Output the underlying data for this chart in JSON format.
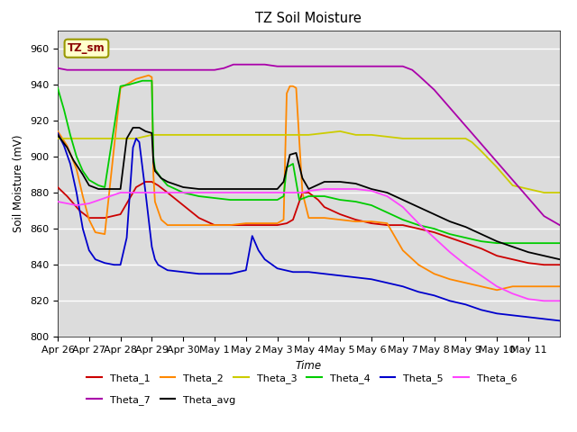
{
  "title": "TZ Soil Moisture",
  "xlabel": "Time",
  "ylabel": "Soil Moisture (mV)",
  "ylim": [
    800,
    970
  ],
  "yticks": [
    800,
    820,
    840,
    860,
    880,
    900,
    920,
    940,
    960
  ],
  "bg_color": "#dcdcdc",
  "legend_label": "TZ_sm",
  "series_order": [
    "Theta_1",
    "Theta_2",
    "Theta_3",
    "Theta_4",
    "Theta_5",
    "Theta_6",
    "Theta_7",
    "Theta_avg"
  ],
  "series": {
    "Theta_1": {
      "color": "#cc0000",
      "points": [
        [
          0,
          883
        ],
        [
          0.3,
          878
        ],
        [
          0.7,
          870
        ],
        [
          1.0,
          866
        ],
        [
          1.5,
          866
        ],
        [
          2.0,
          868
        ],
        [
          2.5,
          883
        ],
        [
          2.8,
          886
        ],
        [
          3.0,
          886
        ],
        [
          3.2,
          884
        ],
        [
          3.5,
          880
        ],
        [
          4.0,
          873
        ],
        [
          4.5,
          866
        ],
        [
          5.0,
          862
        ],
        [
          5.5,
          862
        ],
        [
          6.0,
          862
        ],
        [
          6.5,
          862
        ],
        [
          7.0,
          862
        ],
        [
          7.3,
          863
        ],
        [
          7.5,
          865
        ],
        [
          7.8,
          880
        ],
        [
          8.0,
          880
        ],
        [
          8.3,
          876
        ],
        [
          8.5,
          872
        ],
        [
          9.0,
          868
        ],
        [
          9.5,
          865
        ],
        [
          10.0,
          863
        ],
        [
          10.5,
          862
        ],
        [
          11.0,
          862
        ],
        [
          11.5,
          860
        ],
        [
          12.0,
          858
        ],
        [
          12.5,
          855
        ],
        [
          13.0,
          852
        ],
        [
          13.5,
          849
        ],
        [
          14.0,
          845
        ],
        [
          14.5,
          843
        ],
        [
          15.0,
          841
        ],
        [
          15.5,
          840
        ],
        [
          16.0,
          840
        ]
      ]
    },
    "Theta_2": {
      "color": "#ff8800",
      "points": [
        [
          0,
          914
        ],
        [
          0.3,
          906
        ],
        [
          0.6,
          893
        ],
        [
          0.8,
          878
        ],
        [
          1.0,
          865
        ],
        [
          1.2,
          858
        ],
        [
          1.5,
          857
        ],
        [
          2.0,
          938
        ],
        [
          2.3,
          941
        ],
        [
          2.5,
          943
        ],
        [
          2.7,
          944
        ],
        [
          2.9,
          945
        ],
        [
          3.0,
          944
        ],
        [
          3.05,
          890
        ],
        [
          3.1,
          875
        ],
        [
          3.3,
          865
        ],
        [
          3.5,
          862
        ],
        [
          4.0,
          862
        ],
        [
          4.5,
          862
        ],
        [
          5.0,
          862
        ],
        [
          5.5,
          862
        ],
        [
          6.0,
          863
        ],
        [
          6.5,
          863
        ],
        [
          7.0,
          863
        ],
        [
          7.2,
          865
        ],
        [
          7.3,
          935
        ],
        [
          7.4,
          939
        ],
        [
          7.5,
          939
        ],
        [
          7.6,
          938
        ],
        [
          7.8,
          880
        ],
        [
          8.0,
          866
        ],
        [
          8.2,
          866
        ],
        [
          8.5,
          866
        ],
        [
          9.0,
          865
        ],
        [
          9.5,
          864
        ],
        [
          10.0,
          864
        ],
        [
          10.5,
          863
        ],
        [
          11.0,
          848
        ],
        [
          11.5,
          840
        ],
        [
          12.0,
          835
        ],
        [
          12.5,
          832
        ],
        [
          13.0,
          830
        ],
        [
          13.5,
          828
        ],
        [
          14.0,
          826
        ],
        [
          14.5,
          828
        ],
        [
          15.0,
          828
        ],
        [
          15.5,
          828
        ],
        [
          16.0,
          828
        ]
      ]
    },
    "Theta_3": {
      "color": "#cccc00",
      "points": [
        [
          0,
          910
        ],
        [
          0.5,
          910
        ],
        [
          1.0,
          910
        ],
        [
          1.5,
          910
        ],
        [
          2.0,
          910
        ],
        [
          2.5,
          910
        ],
        [
          3.0,
          912
        ],
        [
          3.5,
          912
        ],
        [
          4.0,
          912
        ],
        [
          4.5,
          912
        ],
        [
          5.0,
          912
        ],
        [
          5.5,
          912
        ],
        [
          6.0,
          912
        ],
        [
          6.5,
          912
        ],
        [
          7.0,
          912
        ],
        [
          7.5,
          912
        ],
        [
          8.0,
          912
        ],
        [
          8.5,
          913
        ],
        [
          9.0,
          914
        ],
        [
          9.5,
          912
        ],
        [
          10.0,
          912
        ],
        [
          10.5,
          911
        ],
        [
          11.0,
          910
        ],
        [
          11.5,
          910
        ],
        [
          12.0,
          910
        ],
        [
          12.5,
          910
        ],
        [
          13.0,
          910
        ],
        [
          13.2,
          908
        ],
        [
          13.5,
          903
        ],
        [
          14.0,
          894
        ],
        [
          14.3,
          888
        ],
        [
          14.5,
          884
        ],
        [
          15.0,
          882
        ],
        [
          15.5,
          880
        ],
        [
          16.0,
          880
        ]
      ]
    },
    "Theta_4": {
      "color": "#00cc00",
      "points": [
        [
          0,
          938
        ],
        [
          0.2,
          926
        ],
        [
          0.4,
          912
        ],
        [
          0.6,
          900
        ],
        [
          0.8,
          892
        ],
        [
          1.0,
          887
        ],
        [
          1.3,
          884
        ],
        [
          1.5,
          883
        ],
        [
          2.0,
          939
        ],
        [
          2.3,
          940
        ],
        [
          2.5,
          941
        ],
        [
          2.7,
          942
        ],
        [
          2.9,
          942
        ],
        [
          3.0,
          942
        ],
        [
          3.05,
          900
        ],
        [
          3.1,
          893
        ],
        [
          3.3,
          888
        ],
        [
          3.5,
          884
        ],
        [
          4.0,
          880
        ],
        [
          4.5,
          878
        ],
        [
          5.0,
          877
        ],
        [
          5.5,
          876
        ],
        [
          6.0,
          876
        ],
        [
          6.5,
          876
        ],
        [
          7.0,
          876
        ],
        [
          7.2,
          878
        ],
        [
          7.3,
          894
        ],
        [
          7.5,
          896
        ],
        [
          7.7,
          876
        ],
        [
          8.0,
          878
        ],
        [
          8.5,
          878
        ],
        [
          9.0,
          876
        ],
        [
          9.5,
          875
        ],
        [
          10.0,
          873
        ],
        [
          10.5,
          869
        ],
        [
          11.0,
          865
        ],
        [
          11.5,
          862
        ],
        [
          12.0,
          860
        ],
        [
          12.5,
          857
        ],
        [
          13.0,
          855
        ],
        [
          13.5,
          853
        ],
        [
          14.0,
          852
        ],
        [
          14.5,
          852
        ],
        [
          15.0,
          852
        ],
        [
          15.5,
          852
        ],
        [
          16.0,
          852
        ]
      ]
    },
    "Theta_5": {
      "color": "#0000cc",
      "points": [
        [
          0,
          913
        ],
        [
          0.2,
          906
        ],
        [
          0.4,
          896
        ],
        [
          0.6,
          880
        ],
        [
          0.8,
          860
        ],
        [
          1.0,
          848
        ],
        [
          1.2,
          843
        ],
        [
          1.5,
          841
        ],
        [
          1.8,
          840
        ],
        [
          2.0,
          840
        ],
        [
          2.2,
          855
        ],
        [
          2.4,
          905
        ],
        [
          2.5,
          910
        ],
        [
          2.6,
          908
        ],
        [
          2.8,
          880
        ],
        [
          3.0,
          850
        ],
        [
          3.1,
          843
        ],
        [
          3.2,
          840
        ],
        [
          3.5,
          837
        ],
        [
          4.0,
          836
        ],
        [
          4.5,
          835
        ],
        [
          5.0,
          835
        ],
        [
          5.5,
          835
        ],
        [
          6.0,
          837
        ],
        [
          6.2,
          856
        ],
        [
          6.4,
          848
        ],
        [
          6.6,
          843
        ],
        [
          7.0,
          838
        ],
        [
          7.5,
          836
        ],
        [
          8.0,
          836
        ],
        [
          8.5,
          835
        ],
        [
          9.0,
          834
        ],
        [
          9.5,
          833
        ],
        [
          10.0,
          832
        ],
        [
          10.5,
          830
        ],
        [
          11.0,
          828
        ],
        [
          11.5,
          825
        ],
        [
          12.0,
          823
        ],
        [
          12.5,
          820
        ],
        [
          13.0,
          818
        ],
        [
          13.5,
          815
        ],
        [
          14.0,
          813
        ],
        [
          14.5,
          812
        ],
        [
          15.0,
          811
        ],
        [
          15.5,
          810
        ],
        [
          16.0,
          809
        ]
      ]
    },
    "Theta_6": {
      "color": "#ff44ff",
      "points": [
        [
          0,
          875
        ],
        [
          0.3,
          874
        ],
        [
          0.6,
          873
        ],
        [
          1.0,
          874
        ],
        [
          1.5,
          877
        ],
        [
          2.0,
          880
        ],
        [
          2.5,
          880
        ],
        [
          3.0,
          880
        ],
        [
          3.5,
          880
        ],
        [
          4.0,
          880
        ],
        [
          4.5,
          880
        ],
        [
          5.0,
          880
        ],
        [
          5.5,
          880
        ],
        [
          6.0,
          880
        ],
        [
          6.5,
          880
        ],
        [
          7.0,
          880
        ],
        [
          7.5,
          880
        ],
        [
          7.8,
          880
        ],
        [
          8.0,
          881
        ],
        [
          8.5,
          882
        ],
        [
          9.0,
          882
        ],
        [
          9.5,
          882
        ],
        [
          10.0,
          881
        ],
        [
          10.5,
          878
        ],
        [
          11.0,
          872
        ],
        [
          11.5,
          863
        ],
        [
          12.0,
          855
        ],
        [
          12.5,
          847
        ],
        [
          13.0,
          840
        ],
        [
          13.5,
          834
        ],
        [
          14.0,
          828
        ],
        [
          14.5,
          824
        ],
        [
          15.0,
          821
        ],
        [
          15.5,
          820
        ],
        [
          16.0,
          820
        ]
      ]
    },
    "Theta_7": {
      "color": "#aa00aa",
      "points": [
        [
          0,
          949
        ],
        [
          0.3,
          948
        ],
        [
          0.7,
          948
        ],
        [
          1.0,
          948
        ],
        [
          1.5,
          948
        ],
        [
          2.0,
          948
        ],
        [
          2.5,
          948
        ],
        [
          3.0,
          948
        ],
        [
          3.5,
          948
        ],
        [
          4.0,
          948
        ],
        [
          4.5,
          948
        ],
        [
          5.0,
          948
        ],
        [
          5.3,
          949
        ],
        [
          5.6,
          951
        ],
        [
          5.8,
          951
        ],
        [
          6.0,
          951
        ],
        [
          6.3,
          951
        ],
        [
          6.6,
          951
        ],
        [
          7.0,
          950
        ],
        [
          7.5,
          950
        ],
        [
          8.0,
          950
        ],
        [
          8.5,
          950
        ],
        [
          9.0,
          950
        ],
        [
          9.5,
          950
        ],
        [
          10.0,
          950
        ],
        [
          10.5,
          950
        ],
        [
          11.0,
          950
        ],
        [
          11.3,
          948
        ],
        [
          11.5,
          945
        ],
        [
          12.0,
          937
        ],
        [
          12.5,
          927
        ],
        [
          13.0,
          917
        ],
        [
          13.5,
          907
        ],
        [
          14.0,
          897
        ],
        [
          14.5,
          887
        ],
        [
          15.0,
          877
        ],
        [
          15.5,
          867
        ],
        [
          16.0,
          862
        ]
      ]
    },
    "Theta_avg": {
      "color": "#000000",
      "points": [
        [
          0,
          912
        ],
        [
          0.3,
          905
        ],
        [
          0.5,
          898
        ],
        [
          0.8,
          890
        ],
        [
          1.0,
          884
        ],
        [
          1.3,
          882
        ],
        [
          1.5,
          882
        ],
        [
          2.0,
          882
        ],
        [
          2.2,
          910
        ],
        [
          2.4,
          916
        ],
        [
          2.6,
          916
        ],
        [
          2.8,
          914
        ],
        [
          3.0,
          913
        ],
        [
          3.05,
          897
        ],
        [
          3.1,
          892
        ],
        [
          3.3,
          888
        ],
        [
          3.5,
          886
        ],
        [
          4.0,
          883
        ],
        [
          4.5,
          882
        ],
        [
          5.0,
          882
        ],
        [
          5.5,
          882
        ],
        [
          6.0,
          882
        ],
        [
          6.5,
          882
        ],
        [
          7.0,
          882
        ],
        [
          7.2,
          886
        ],
        [
          7.4,
          901
        ],
        [
          7.6,
          902
        ],
        [
          7.8,
          888
        ],
        [
          8.0,
          882
        ],
        [
          8.5,
          886
        ],
        [
          9.0,
          886
        ],
        [
          9.5,
          885
        ],
        [
          10.0,
          882
        ],
        [
          10.5,
          880
        ],
        [
          11.0,
          876
        ],
        [
          11.5,
          872
        ],
        [
          12.0,
          868
        ],
        [
          12.5,
          864
        ],
        [
          13.0,
          861
        ],
        [
          13.5,
          857
        ],
        [
          14.0,
          853
        ],
        [
          14.5,
          850
        ],
        [
          15.0,
          847
        ],
        [
          15.5,
          845
        ],
        [
          16.0,
          843
        ]
      ]
    }
  },
  "xtick_labels": [
    "Apr 26",
    "Apr 27",
    "Apr 28",
    "Apr 29",
    "Apr 30",
    "May 1",
    "May 2",
    "May 3",
    "May 4",
    "May 5",
    "May 6",
    "May 7",
    "May 8",
    "May 9",
    "May 10",
    "May 11"
  ]
}
